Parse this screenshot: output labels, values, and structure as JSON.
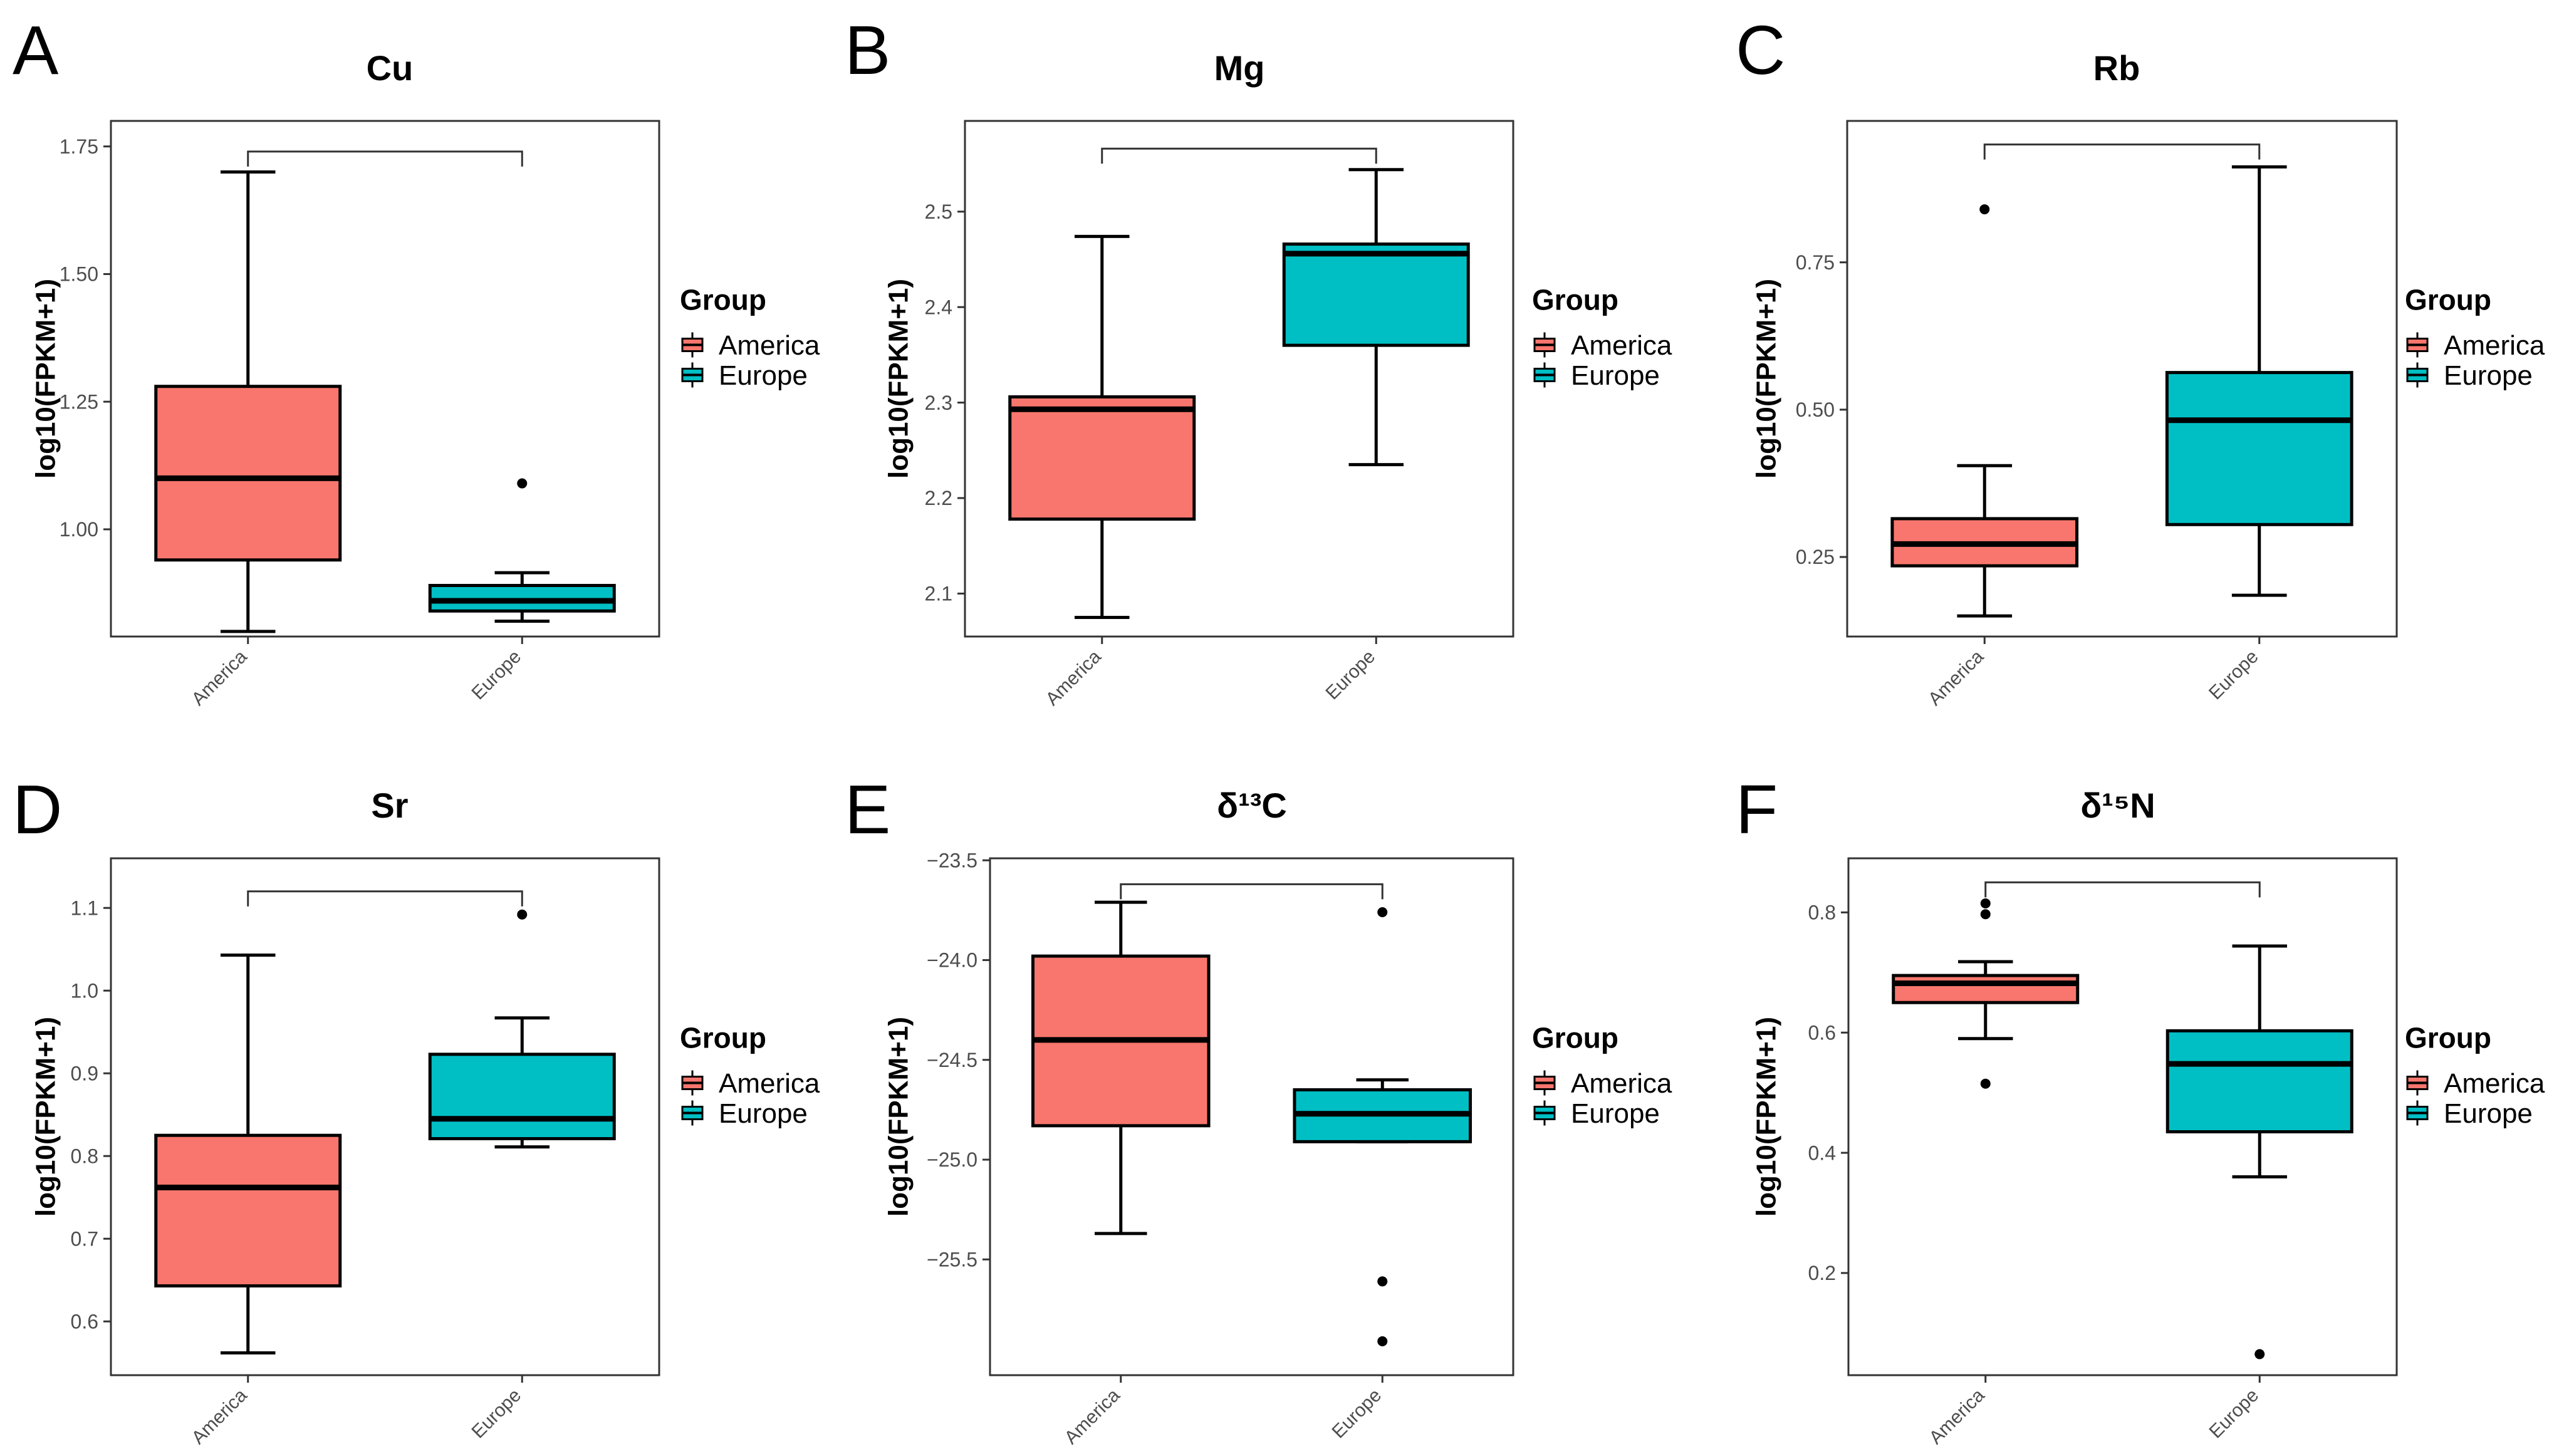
{
  "colors": {
    "America": "#F8766D",
    "Europe": "#00BFC4",
    "axis": "#333333",
    "tick_text": "#4d4d4d"
  },
  "legend": {
    "title": "Group",
    "items": [
      "America",
      "Europe"
    ]
  },
  "chart_data": [
    {
      "panel": "A",
      "title": "Cu",
      "type": "boxplot",
      "ylabel": "log10(FPKM+1)",
      "ylim": [
        0.79,
        1.8
      ],
      "yticks": [
        1.0,
        1.25,
        1.5,
        1.75
      ],
      "ytick_labels": [
        "1.00",
        "1.25",
        "1.50",
        "1.75"
      ],
      "categories": [
        "America",
        "Europe"
      ],
      "boxes": [
        {
          "group": "America",
          "min": 0.8,
          "q1": 0.94,
          "median": 1.1,
          "q3": 1.28,
          "max": 1.7,
          "outliers": []
        },
        {
          "group": "Europe",
          "min": 0.82,
          "q1": 0.84,
          "median": 0.86,
          "q3": 0.89,
          "max": 0.915,
          "outliers": [
            1.09
          ]
        }
      ],
      "bracket_y": 1.74
    },
    {
      "panel": "B",
      "title": "Mg",
      "type": "boxplot",
      "ylabel": "log10(FPKM+1)",
      "ylim": [
        2.055,
        2.595
      ],
      "yticks": [
        2.1,
        2.2,
        2.3,
        2.4,
        2.5
      ],
      "ytick_labels": [
        "2.1",
        "2.2",
        "2.3",
        "2.4",
        "2.5"
      ],
      "categories": [
        "America",
        "Europe"
      ],
      "boxes": [
        {
          "group": "America",
          "min": 2.075,
          "q1": 2.178,
          "median": 2.293,
          "q3": 2.306,
          "max": 2.474,
          "outliers": []
        },
        {
          "group": "Europe",
          "min": 2.235,
          "q1": 2.36,
          "median": 2.456,
          "q3": 2.466,
          "max": 2.544,
          "outliers": []
        }
      ],
      "bracket_y": 2.566
    },
    {
      "panel": "C",
      "title": "Rb",
      "type": "boxplot",
      "ylabel": "log10(FPKM+1)",
      "ylim": [
        0.115,
        0.99
      ],
      "yticks": [
        0.25,
        0.5,
        0.75
      ],
      "ytick_labels": [
        "0.25",
        "0.50",
        "0.75"
      ],
      "categories": [
        "America",
        "Europe"
      ],
      "boxes": [
        {
          "group": "America",
          "min": 0.15,
          "q1": 0.235,
          "median": 0.272,
          "q3": 0.315,
          "max": 0.405,
          "outliers": [
            0.84
          ]
        },
        {
          "group": "Europe",
          "min": 0.185,
          "q1": 0.305,
          "median": 0.482,
          "q3": 0.563,
          "max": 0.912,
          "outliers": []
        }
      ],
      "bracket_y": 0.95
    },
    {
      "panel": "D",
      "title": "Sr",
      "type": "boxplot",
      "ylabel": "log10(FPKM+1)",
      "ylim": [
        0.535,
        1.16
      ],
      "yticks": [
        0.6,
        0.7,
        0.8,
        0.9,
        1.0,
        1.1
      ],
      "ytick_labels": [
        "0.6",
        "0.7",
        "0.8",
        "0.9",
        "1.0",
        "1.1"
      ],
      "categories": [
        "America",
        "Europe"
      ],
      "boxes": [
        {
          "group": "America",
          "min": 0.562,
          "q1": 0.643,
          "median": 0.762,
          "q3": 0.825,
          "max": 1.043,
          "outliers": []
        },
        {
          "group": "Europe",
          "min": 0.811,
          "q1": 0.821,
          "median": 0.845,
          "q3": 0.923,
          "max": 0.967,
          "outliers": [
            1.092
          ]
        }
      ],
      "bracket_y": 1.12
    },
    {
      "panel": "E",
      "title": "δ¹³C",
      "type": "boxplot",
      "ylabel": "log10(FPKM+1)",
      "ylim": [
        -26.08,
        -23.49
      ],
      "yticks": [
        -25.5,
        -25.0,
        -24.5,
        -24.0,
        -23.5
      ],
      "ytick_labels": [
        "−25.5",
        "−25.0",
        "−24.5",
        "−24.0",
        "−23.5"
      ],
      "categories": [
        "America",
        "Europe"
      ],
      "boxes": [
        {
          "group": "America",
          "min": -25.37,
          "q1": -24.83,
          "median": -24.4,
          "q3": -23.98,
          "max": -23.71,
          "outliers": []
        },
        {
          "group": "Europe",
          "min": -24.91,
          "q1": -24.91,
          "median": -24.77,
          "q3": -24.65,
          "max": -24.6,
          "outliers": [
            -23.76,
            -25.61,
            -25.91
          ]
        }
      ],
      "bracket_y": -23.62
    },
    {
      "panel": "F",
      "title": "δ¹⁵N",
      "type": "boxplot",
      "ylabel": "log10(FPKM+1)",
      "ylim": [
        0.03,
        0.89
      ],
      "yticks": [
        0.2,
        0.4,
        0.6,
        0.8
      ],
      "ytick_labels": [
        "0.2",
        "0.4",
        "0.6",
        "0.8"
      ],
      "categories": [
        "America",
        "Europe"
      ],
      "boxes": [
        {
          "group": "America",
          "min": 0.59,
          "q1": 0.65,
          "median": 0.682,
          "q3": 0.695,
          "max": 0.718,
          "outliers": [
            0.515,
            0.797,
            0.815
          ]
        },
        {
          "group": "Europe",
          "min": 0.36,
          "q1": 0.435,
          "median": 0.548,
          "q3": 0.603,
          "max": 0.744,
          "outliers": [
            0.065
          ]
        }
      ],
      "bracket_y": 0.85
    }
  ]
}
